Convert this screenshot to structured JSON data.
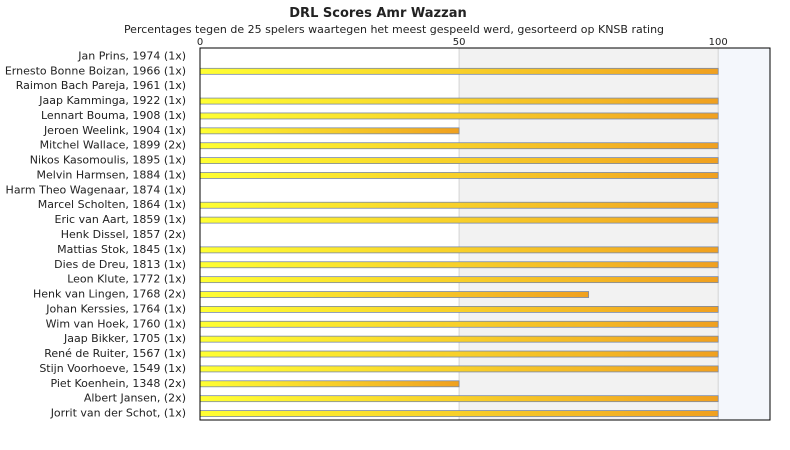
{
  "chart_data": {
    "type": "bar",
    "orientation": "horizontal",
    "title": "DRL Scores Amr Wazzan",
    "subtitle": "Percentages tegen de 25 spelers waartegen het meest gespeeld werd, gesorteerd op KNSB rating",
    "xlim": [
      0,
      110
    ],
    "xticks": [
      0,
      50,
      100
    ],
    "grid": true,
    "categories": [
      "Jan Prins, 1974 (1x)",
      "Ernesto Bonne Boizan, 1966 (1x)",
      "Raimon Bach Pareja, 1961 (1x)",
      "Jaap Kamminga, 1922 (1x)",
      "Lennart Bouma, 1908 (1x)",
      "Jeroen Weelink, 1904 (1x)",
      "Mitchel Wallace, 1899 (2x)",
      "Nikos Kasomoulis, 1895 (1x)",
      "Melvin Harmsen, 1884 (1x)",
      "Harm Theo Wagenaar, 1874 (1x)",
      "Marcel Scholten, 1864 (1x)",
      "Eric van Aart, 1859 (1x)",
      "Henk Dissel, 1857 (2x)",
      "Mattias Stok, 1845 (1x)",
      "Dies de Dreu, 1813 (1x)",
      "Leon Klute, 1772 (1x)",
      "Henk van Lingen, 1768 (2x)",
      "Johan Kerssies, 1764 (1x)",
      "Wim van Hoek, 1760 (1x)",
      "Jaap Bikker, 1705 (1x)",
      "René de Ruiter, 1567 (1x)",
      "Stijn Voorhoeve, 1549 (1x)",
      "Piet Koenhein, 1348 (2x)",
      "Albert Jansen,  (2x)",
      "Jorrit van der Schot,  (1x)"
    ],
    "values": [
      0,
      100,
      0,
      100,
      100,
      50,
      100,
      100,
      100,
      0,
      100,
      100,
      0,
      100,
      100,
      100,
      75,
      100,
      100,
      100,
      100,
      100,
      50,
      100,
      100
    ],
    "colors": {
      "bar_start": "#ffff33",
      "bar_end": "#f0a020",
      "bar_edge": "#7a8aa8",
      "band_a": "#ffffff",
      "band_b": "#f2f2f2",
      "band_c": "#f4f7fc",
      "gridline": "#d4d4d4",
      "frame": "#000000"
    }
  }
}
